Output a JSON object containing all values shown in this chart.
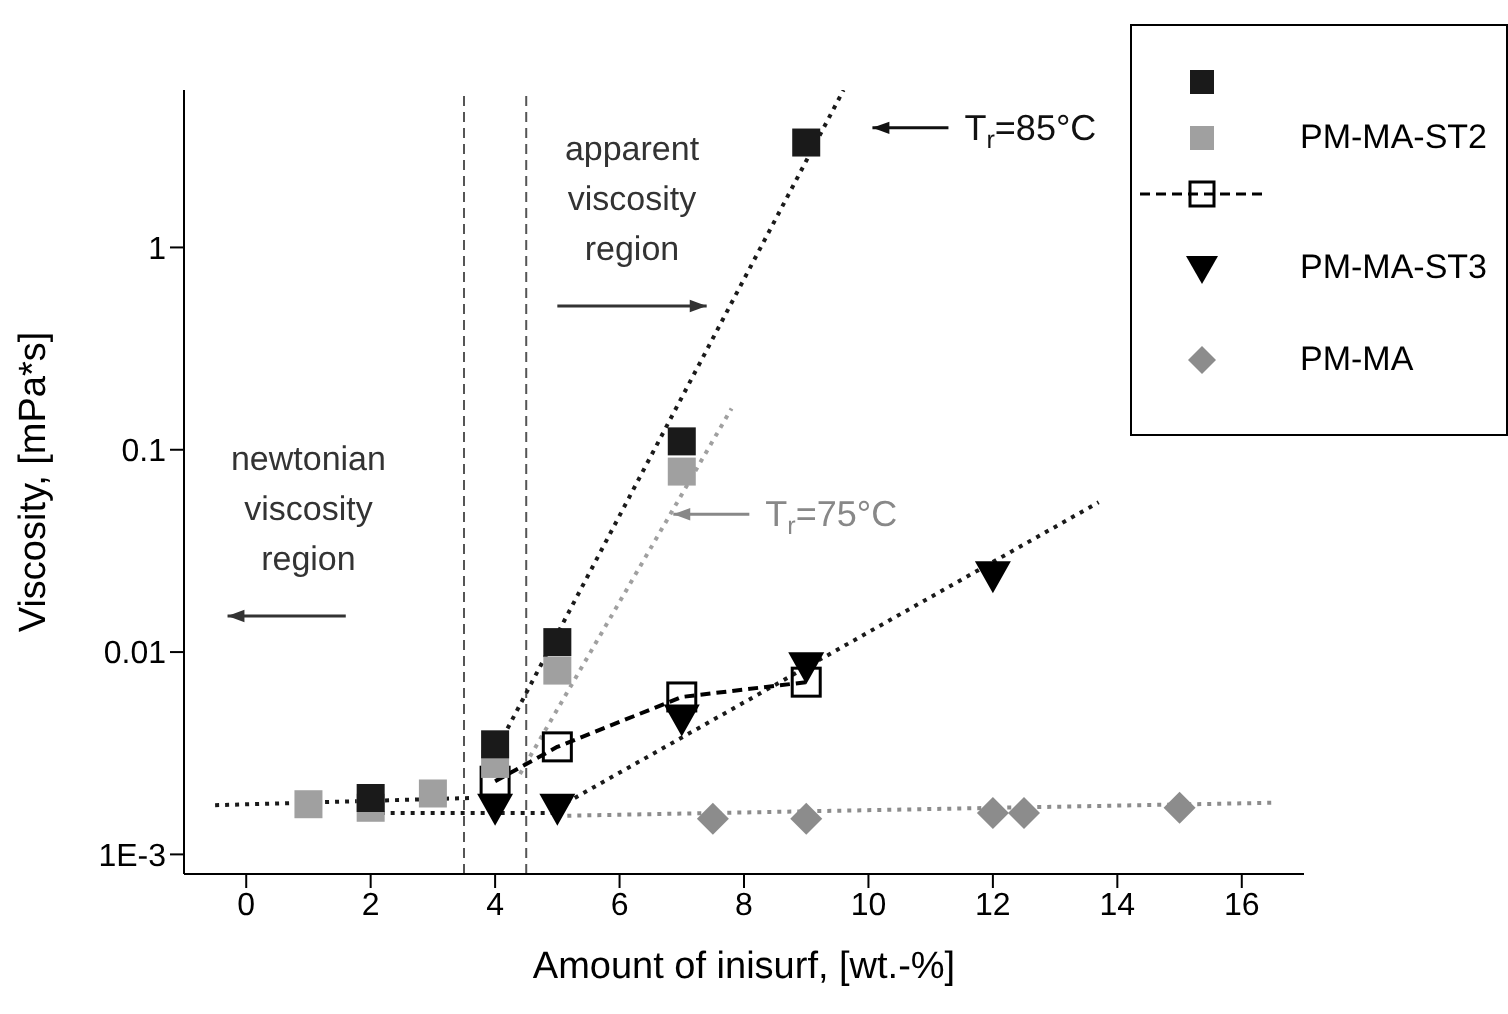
{
  "chart_data": {
    "type": "scatter",
    "xlabel": "Amount of inisurf, [wt.-%]",
    "ylabel": "Viscosity, [mPa*s]",
    "log": "y",
    "xlim": [
      -1,
      17
    ],
    "xticks": [
      0,
      2,
      4,
      6,
      8,
      10,
      12,
      14,
      16
    ],
    "ylim": [
      0.0008,
      6
    ],
    "yticks": [
      {
        "value": 0.001,
        "label": "1E-3"
      },
      0.01,
      0.1,
      1
    ],
    "legend": "top right",
    "grid": false,
    "series": [
      {
        "marker": "square",
        "color": "#1a1a1a",
        "x": [
          2,
          4,
          5,
          7,
          9
        ],
        "values": [
          0.0019,
          0.0035,
          0.0112,
          0.11,
          3.3
        ]
      },
      {
        "name": "PM-MA-ST2",
        "marker": "square",
        "color": "#a0a0a0",
        "x": [
          1,
          2,
          3,
          4,
          5,
          7
        ],
        "values": [
          0.00177,
          0.0017,
          0.002,
          0.0028,
          0.0081,
          0.078
        ]
      },
      {
        "type": "line",
        "marker": "square",
        "line_style": "dashed",
        "color": "#000000",
        "x": [
          4,
          5,
          7,
          9
        ],
        "values": [
          0.0023,
          0.0034,
          0.006,
          0.0071
        ]
      },
      {
        "name": "PM-MA-ST3",
        "marker": "triangle",
        "color": "#000000",
        "x": [
          4,
          5,
          7,
          9,
          12
        ],
        "values": [
          0.0017,
          0.0017,
          0.0047,
          0.0085,
          0.024
        ]
      },
      {
        "name": "PM-MA",
        "marker": "diamond",
        "color": "#8c8c8c",
        "x": [
          7.5,
          9,
          12,
          12.5,
          15
        ],
        "values": [
          0.0015,
          0.0015,
          0.0016,
          0.0016,
          0.0017
        ]
      },
      {
        "type": "line",
        "marker": "none",
        "line_style": "dotted",
        "color": "#1a1a1a",
        "x": [
          3.9,
          9.6
        ],
        "values": [
          0.0028,
          6
        ]
      },
      {
        "type": "line",
        "marker": "none",
        "line_style": "dotted",
        "color": "#a0a0a0",
        "x": [
          4.4,
          7.8
        ],
        "values": [
          0.0025,
          0.16
        ]
      },
      {
        "type": "line",
        "marker": "none",
        "line_style": "dotted",
        "color": "#1a1a1a",
        "x": [
          -0.5,
          3.6
        ],
        "values": [
          0.00175,
          0.0019
        ]
      },
      {
        "type": "line",
        "marker": "none",
        "line_style": "dotted",
        "color": "#1a1a1a",
        "x": [
          2,
          5
        ],
        "values": [
          0.0016,
          0.0016
        ]
      },
      {
        "type": "line",
        "marker": "none",
        "line_style": "dotted",
        "color": "#1a1a1a",
        "x": [
          5,
          13.7
        ],
        "values": [
          0.0017,
          0.055
        ]
      },
      {
        "type": "line",
        "marker": "none",
        "line_style": "dotted",
        "color": "#8c8c8c",
        "x": [
          5,
          16.5
        ],
        "values": [
          0.00155,
          0.0018
        ]
      }
    ],
    "ref_lines": [
      {
        "axis": "x",
        "value": 3.5,
        "line_style": "dashed",
        "color": "#555555"
      },
      {
        "axis": "x",
        "value": 4.5,
        "line_style": "dashed",
        "color": "#555555"
      }
    ],
    "annotations": [
      "T$_{r}$=85°C",
      "T$_{r}$=75°C",
      "apparent viscosity region",
      "newtonian viscosity region"
    ]
  }
}
